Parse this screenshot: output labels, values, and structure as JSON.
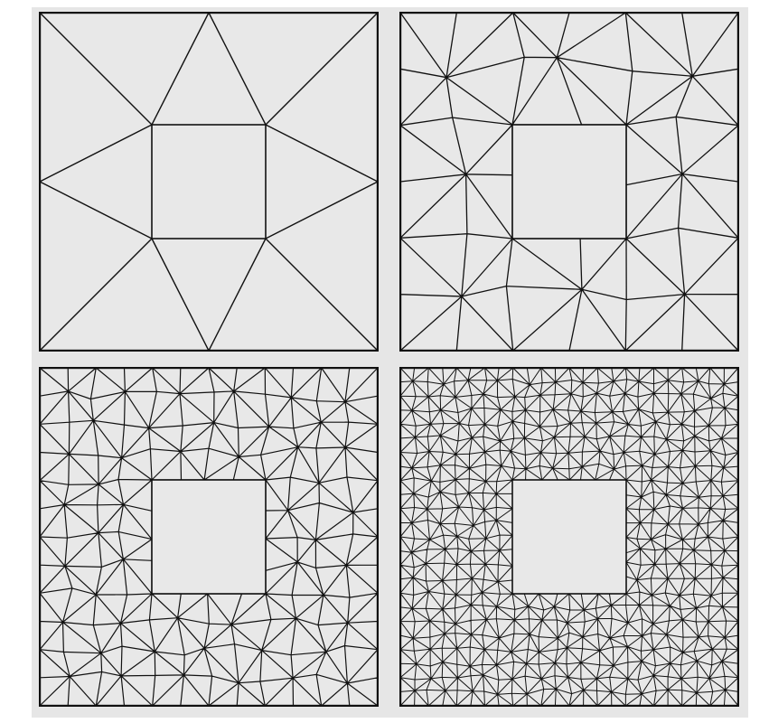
{
  "colors": {
    "background": "#e6e6e6",
    "mesh_face": "#e8e8e8",
    "mesh_edge": "#111111"
  },
  "panels": [
    {
      "name": "coarse-mesh",
      "refinement_level": 0,
      "hole": "square-center"
    },
    {
      "name": "refined-mesh-level-1",
      "refinement_level": 1,
      "hole": "square-center"
    },
    {
      "name": "refined-mesh-level-2",
      "refinement_level": 2,
      "hole": "square-center"
    },
    {
      "name": "refined-mesh-level-3",
      "refinement_level": 3,
      "hole": "square-center"
    }
  ]
}
